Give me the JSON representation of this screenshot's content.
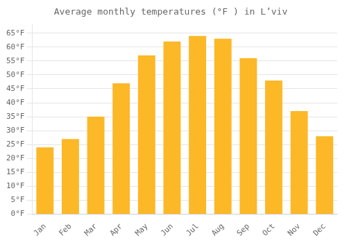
{
  "chart_data": {
    "type": "bar",
    "title": "Average monthly temperatures (°F ) in L’viv",
    "categories": [
      "Jan",
      "Feb",
      "Mar",
      "Apr",
      "May",
      "Jun",
      "Jul",
      "Aug",
      "Sep",
      "Oct",
      "Nov",
      "Dec"
    ],
    "values": [
      24,
      27,
      35,
      47,
      57,
      62,
      64,
      63,
      56,
      48,
      37,
      28
    ],
    "color": "#FDB827",
    "ylim": [
      0,
      68
    ],
    "yticks": [
      {
        "value": 0,
        "label": "0°F"
      },
      {
        "value": 5,
        "label": "5°F"
      },
      {
        "value": 10,
        "label": "10°F"
      },
      {
        "value": 15,
        "label": "15°F"
      },
      {
        "value": 20,
        "label": "20°F"
      },
      {
        "value": 25,
        "label": "25°F"
      },
      {
        "value": 30,
        "label": "30°F"
      },
      {
        "value": 35,
        "label": "35°F"
      },
      {
        "value": 40,
        "label": "40°F"
      },
      {
        "value": 45,
        "label": "45°F"
      },
      {
        "value": 50,
        "label": "50°F"
      },
      {
        "value": 55,
        "label": "55°F"
      },
      {
        "value": 60,
        "label": "60°F"
      },
      {
        "value": 65,
        "label": "65°F"
      }
    ],
    "grid": true
  }
}
